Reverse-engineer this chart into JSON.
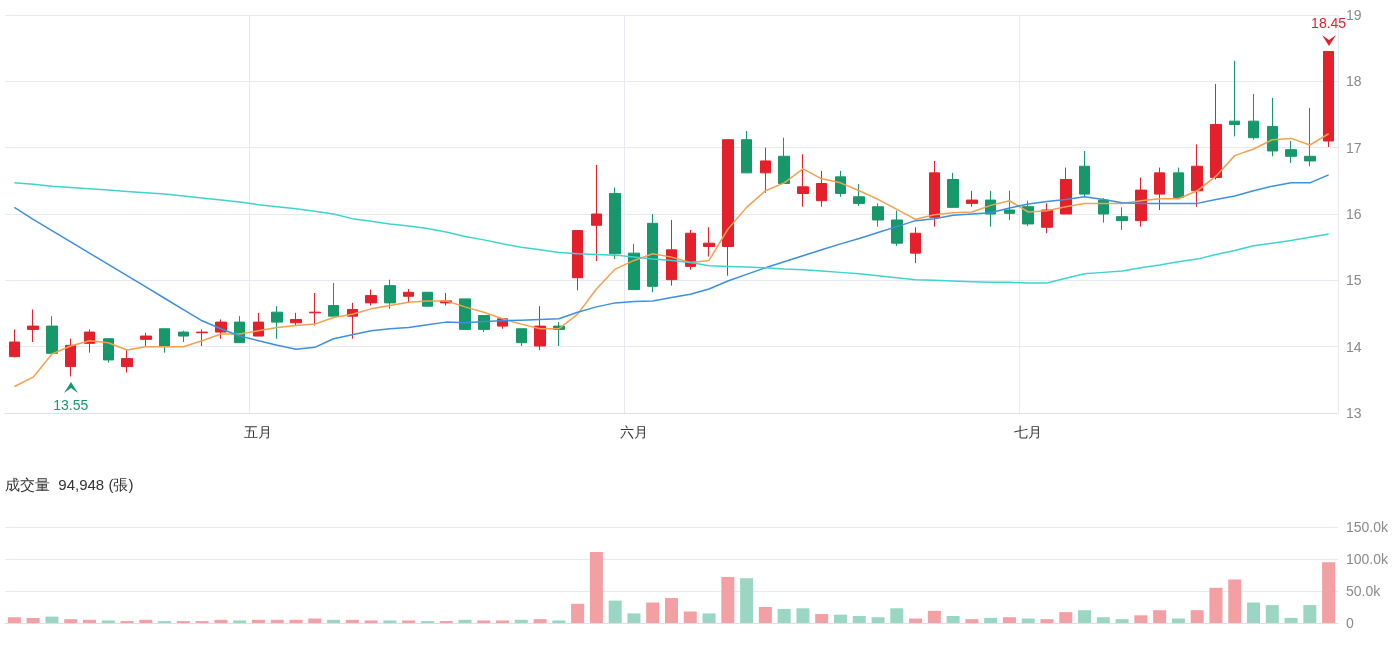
{
  "chart_data": [
    {
      "type": "candlestick",
      "categories": [
        null,
        null,
        null,
        null,
        null,
        null,
        null,
        null,
        null,
        null,
        null,
        null,
        null,
        "五月",
        null,
        null,
        null,
        null,
        null,
        null,
        null,
        null,
        null,
        null,
        null,
        null,
        null,
        null,
        null,
        null,
        null,
        null,
        null,
        "六月",
        null,
        null,
        null,
        null,
        null,
        null,
        null,
        null,
        null,
        null,
        null,
        null,
        null,
        null,
        null,
        null,
        null,
        null,
        null,
        null,
        "七月",
        null,
        null,
        null,
        null,
        null,
        null,
        null,
        null,
        null,
        null,
        null,
        null,
        null,
        null,
        null,
        null
      ],
      "ylim": [
        13,
        19
      ],
      "yticks": [
        13,
        14,
        15,
        16,
        17,
        18,
        19
      ],
      "grid": true,
      "marker": "none",
      "annotations": [
        {
          "text": "18.45",
          "y": 18.45
        },
        {
          "text": "13.55",
          "y": 13.55
        }
      ],
      "series": [
        {
          "ohlc": [
            [
              13.85,
              14.26,
              13.84,
              14.07
            ],
            [
              14.26,
              14.56,
              14.07,
              14.31
            ],
            [
              14.31,
              14.46,
              13.9,
              13.9
            ],
            [
              13.7,
              14.12,
              13.55,
              14.02
            ],
            [
              14.05,
              14.26,
              13.91,
              14.22
            ],
            [
              14.12,
              14.12,
              13.76,
              13.8
            ],
            [
              13.7,
              13.95,
              13.61,
              13.82
            ],
            [
              14.11,
              14.21,
              14.0,
              14.16
            ],
            [
              14.27,
              14.27,
              13.91,
              14.0
            ],
            [
              14.22,
              14.24,
              14.07,
              14.16
            ],
            [
              14.21,
              14.26,
              14.01,
              14.22
            ],
            [
              14.22,
              14.41,
              14.12,
              14.37
            ],
            [
              14.37,
              14.46,
              14.06,
              14.06
            ],
            [
              14.16,
              14.51,
              14.16,
              14.37
            ],
            [
              14.52,
              14.61,
              14.12,
              14.37
            ],
            [
              14.36,
              14.51,
              14.32,
              14.41
            ],
            [
              14.51,
              14.81,
              14.32,
              14.52
            ],
            [
              14.62,
              14.96,
              14.46,
              14.46
            ],
            [
              14.46,
              14.66,
              14.12,
              14.56
            ],
            [
              14.66,
              14.86,
              14.62,
              14.77
            ],
            [
              14.92,
              15.01,
              14.57,
              14.66
            ],
            [
              14.76,
              14.87,
              14.66,
              14.82
            ],
            [
              14.82,
              14.82,
              14.61,
              14.61
            ],
            [
              14.66,
              14.81,
              14.62,
              14.69
            ],
            [
              14.72,
              14.72,
              14.26,
              14.26
            ],
            [
              14.47,
              14.47,
              14.22,
              14.26
            ],
            [
              14.31,
              14.42,
              14.27,
              14.42
            ],
            [
              14.27,
              14.27,
              14.01,
              14.06
            ],
            [
              14.01,
              14.61,
              13.95,
              14.31
            ],
            [
              14.31,
              14.37,
              14.01,
              14.26
            ],
            [
              15.04,
              15.75,
              14.85,
              15.75
            ],
            [
              15.83,
              16.74,
              15.29,
              16.0
            ],
            [
              16.31,
              16.4,
              15.32,
              15.4
            ],
            [
              15.41,
              15.55,
              14.86,
              14.86
            ],
            [
              15.86,
              16.0,
              14.82,
              14.91
            ],
            [
              15.01,
              15.91,
              14.92,
              15.46
            ],
            [
              15.21,
              15.76,
              15.16,
              15.71
            ],
            [
              15.51,
              15.8,
              15.36,
              15.56
            ],
            [
              15.51,
              17.12,
              15.07,
              17.12
            ],
            [
              17.12,
              17.25,
              16.62,
              16.62
            ],
            [
              16.62,
              17.0,
              16.32,
              16.8
            ],
            [
              16.87,
              17.15,
              16.46,
              16.46
            ],
            [
              16.31,
              16.9,
              16.11,
              16.41
            ],
            [
              16.2,
              16.65,
              16.11,
              16.46
            ],
            [
              16.56,
              16.65,
              16.26,
              16.31
            ],
            [
              16.26,
              16.45,
              16.12,
              16.16
            ],
            [
              16.11,
              16.16,
              15.81,
              15.91
            ],
            [
              15.91,
              16.05,
              15.52,
              15.56
            ],
            [
              15.41,
              15.8,
              15.26,
              15.71
            ],
            [
              15.95,
              16.8,
              15.81,
              16.62
            ],
            [
              16.52,
              16.62,
              16.1,
              16.1
            ],
            [
              16.16,
              16.35,
              16.11,
              16.21
            ],
            [
              16.21,
              16.35,
              15.81,
              16.0
            ],
            [
              16.06,
              16.35,
              15.91,
              16.01
            ],
            [
              16.11,
              16.2,
              15.82,
              15.85
            ],
            [
              15.8,
              16.16,
              15.71,
              16.06
            ],
            [
              16.0,
              16.7,
              16.0,
              16.52
            ],
            [
              16.72,
              16.95,
              16.27,
              16.3
            ],
            [
              16.21,
              16.24,
              15.87,
              16.0
            ],
            [
              15.96,
              16.1,
              15.76,
              15.9
            ],
            [
              15.9,
              16.55,
              15.81,
              16.36
            ],
            [
              16.3,
              16.7,
              16.06,
              16.62
            ],
            [
              16.62,
              16.7,
              16.25,
              16.25
            ],
            [
              16.35,
              17.05,
              16.11,
              16.72
            ],
            [
              16.55,
              17.96,
              16.52,
              17.35
            ],
            [
              17.4,
              18.31,
              17.17,
              17.35
            ],
            [
              17.4,
              17.81,
              17.12,
              17.15
            ],
            [
              17.32,
              17.75,
              16.87,
              16.95
            ],
            [
              16.97,
              17.1,
              16.77,
              16.87
            ],
            [
              16.87,
              17.6,
              16.72,
              16.8
            ],
            [
              17.1,
              18.45,
              17.01,
              18.45
            ]
          ],
          "colors": [
            "#e3202c",
            "#e3202c",
            "#16986a",
            "#e3202c",
            "#e3202c",
            "#16986a",
            "#e3202c",
            "#e3202c",
            "#16986a",
            "#16986a",
            "#e3202c",
            "#e3202c",
            "#16986a",
            "#e3202c",
            "#16986a",
            "#e3202c",
            "#e3202c",
            "#16986a",
            "#e3202c",
            "#e3202c",
            "#16986a",
            "#e3202c",
            "#16986a",
            "#e3202c",
            "#16986a",
            "#16986a",
            "#e3202c",
            "#16986a",
            "#e3202c",
            "#16986a",
            "#e3202c",
            "#e3202c",
            "#16986a",
            "#16986a",
            "#16986a",
            "#e3202c",
            "#e3202c",
            "#e3202c",
            "#e3202c",
            "#16986a",
            "#e3202c",
            "#16986a",
            "#e3202c",
            "#e3202c",
            "#16986a",
            "#16986a",
            "#16986a",
            "#16986a",
            "#e3202c",
            "#e3202c",
            "#16986a",
            "#e3202c",
            "#16986a",
            "#16986a",
            "#16986a",
            "#e3202c",
            "#e3202c",
            "#16986a",
            "#16986a",
            "#16986a",
            "#e3202c",
            "#e3202c",
            "#16986a",
            "#e3202c",
            "#e3202c",
            "#16986a",
            "#16986a",
            "#16986a",
            "#16986a",
            "#16986a",
            "#e3202c"
          ]
        },
        {
          "type": "line",
          "color": "#f5a04e",
          "values": [
            13.4,
            13.54,
            13.89,
            14.01,
            14.09,
            14.06,
            13.95,
            14.0,
            14.0,
            14.0,
            14.09,
            14.19,
            14.19,
            14.24,
            14.29,
            14.32,
            14.34,
            14.44,
            14.49,
            14.57,
            14.62,
            14.67,
            14.69,
            14.69,
            14.6,
            14.52,
            14.42,
            14.34,
            14.27,
            14.27,
            14.49,
            14.87,
            15.17,
            15.3,
            15.4,
            15.35,
            15.27,
            15.3,
            15.77,
            16.1,
            16.35,
            16.47,
            16.68,
            16.53,
            16.47,
            16.35,
            16.22,
            16.07,
            15.92,
            15.99,
            16.02,
            16.03,
            16.13,
            16.2,
            16.03,
            16.05,
            16.11,
            16.16,
            16.16,
            16.16,
            16.2,
            16.23,
            16.23,
            16.35,
            16.57,
            16.88,
            16.98,
            17.12,
            17.14,
            17.04,
            17.21
          ]
        },
        {
          "type": "line",
          "color": "#3d8fe0",
          "values": [
            16.1,
            15.92,
            15.75,
            15.58,
            15.41,
            15.24,
            15.07,
            14.9,
            14.73,
            14.56,
            14.39,
            14.27,
            14.16,
            14.09,
            14.02,
            13.96,
            13.99,
            14.12,
            14.18,
            14.24,
            14.27,
            14.29,
            14.33,
            14.37,
            14.36,
            14.38,
            14.39,
            14.4,
            14.41,
            14.42,
            14.52,
            14.6,
            14.66,
            14.68,
            14.69,
            14.74,
            14.79,
            14.87,
            14.99,
            15.09,
            15.19,
            15.28,
            15.37,
            15.46,
            15.55,
            15.63,
            15.72,
            15.81,
            15.9,
            15.93,
            15.98,
            16.0,
            16.02,
            16.09,
            16.15,
            16.19,
            16.22,
            16.26,
            16.22,
            16.17,
            16.16,
            16.16,
            16.16,
            16.16,
            16.22,
            16.27,
            16.35,
            16.42,
            16.47,
            16.47,
            16.59
          ]
        },
        {
          "type": "line",
          "color": "#3fd3cf",
          "values": [
            16.47,
            16.45,
            16.42,
            16.4,
            16.38,
            16.36,
            16.34,
            16.32,
            16.3,
            16.27,
            16.24,
            16.21,
            16.18,
            16.14,
            16.11,
            16.08,
            16.04,
            16.0,
            15.93,
            15.89,
            15.85,
            15.82,
            15.78,
            15.73,
            15.66,
            15.61,
            15.55,
            15.5,
            15.46,
            15.42,
            15.4,
            15.39,
            15.38,
            15.35,
            15.32,
            15.3,
            15.27,
            15.22,
            15.21,
            15.2,
            15.19,
            15.17,
            15.16,
            15.14,
            15.12,
            15.1,
            15.07,
            15.04,
            15.01,
            15.0,
            14.99,
            14.98,
            14.97,
            14.97,
            14.96,
            14.96,
            15.03,
            15.1,
            15.12,
            15.14,
            15.19,
            15.23,
            15.28,
            15.32,
            15.39,
            15.45,
            15.52,
            15.56,
            15.6,
            15.65,
            15.7
          ]
        }
      ]
    },
    {
      "type": "bar",
      "title": "成交量  94,948 (張)",
      "categories": [
        null,
        null,
        null,
        null,
        null,
        null,
        null,
        null,
        null,
        null,
        null,
        null,
        null,
        null,
        null,
        null,
        null,
        null,
        null,
        null,
        null,
        null,
        null,
        null,
        null,
        null,
        null,
        null,
        null,
        null,
        null,
        null,
        null,
        null,
        null,
        null,
        null,
        null,
        null,
        null,
        null,
        null,
        null,
        null,
        null,
        null,
        null,
        null,
        null,
        null,
        null,
        null,
        null,
        null,
        null,
        null,
        null,
        null,
        null,
        null,
        null,
        null,
        null,
        null,
        null,
        null,
        null,
        null,
        null,
        null,
        null
      ],
      "grid": "y",
      "ylim": [
        0,
        150000
      ],
      "yticks": [
        {
          "value": 0,
          "label": "0"
        },
        {
          "value": 50000,
          "label": "50.0k"
        },
        {
          "value": 100000,
          "label": "100.0k"
        },
        {
          "value": 150000,
          "label": "150.0k"
        }
      ],
      "values": [
        9000,
        8000,
        10000,
        6000,
        5000,
        4000,
        3000,
        5000,
        3000,
        3000,
        3000,
        5000,
        4000,
        5000,
        5000,
        5000,
        7000,
        5000,
        5000,
        4000,
        4000,
        4000,
        3000,
        3000,
        5000,
        4000,
        4000,
        5000,
        6000,
        4000,
        30000,
        111000,
        35000,
        15000,
        32000,
        39000,
        18000,
        15000,
        72000,
        70000,
        25000,
        22000,
        23000,
        14000,
        13000,
        11000,
        9000,
        23000,
        7000,
        19000,
        11000,
        6000,
        8000,
        9000,
        7000,
        6000,
        17000,
        20000,
        9000,
        6000,
        12000,
        20000,
        7000,
        20000,
        55000,
        68000,
        32000,
        28000,
        8000,
        28000,
        94948
      ],
      "colors": [
        "#f2a0a3",
        "#f2a0a3",
        "#9bd6c2",
        "#f2a0a3",
        "#f2a0a3",
        "#9bd6c2",
        "#f2a0a3",
        "#f2a0a3",
        "#9bd6c2",
        "#f2a0a3",
        "#f2a0a3",
        "#f2a0a3",
        "#9bd6c2",
        "#f2a0a3",
        "#f2a0a3",
        "#f2a0a3",
        "#f2a0a3",
        "#9bd6c2",
        "#f2a0a3",
        "#f2a0a3",
        "#9bd6c2",
        "#f2a0a3",
        "#9bd6c2",
        "#f2a0a3",
        "#9bd6c2",
        "#f2a0a3",
        "#f2a0a3",
        "#9bd6c2",
        "#f2a0a3",
        "#9bd6c2",
        "#f2a0a3",
        "#f2a0a3",
        "#9bd6c2",
        "#9bd6c2",
        "#f2a0a3",
        "#f2a0a3",
        "#f2a0a3",
        "#9bd6c2",
        "#f2a0a3",
        "#9bd6c2",
        "#f2a0a3",
        "#9bd6c2",
        "#9bd6c2",
        "#f2a0a3",
        "#9bd6c2",
        "#9bd6c2",
        "#9bd6c2",
        "#9bd6c2",
        "#f2a0a3",
        "#f2a0a3",
        "#9bd6c2",
        "#f2a0a3",
        "#9bd6c2",
        "#f2a0a3",
        "#9bd6c2",
        "#f2a0a3",
        "#f2a0a3",
        "#9bd6c2",
        "#9bd6c2",
        "#9bd6c2",
        "#f2a0a3",
        "#f2a0a3",
        "#9bd6c2",
        "#f2a0a3",
        "#f2a0a3",
        "#f2a0a3",
        "#9bd6c2",
        "#9bd6c2",
        "#9bd6c2",
        "#9bd6c2",
        "#f2a0a3"
      ]
    }
  ]
}
